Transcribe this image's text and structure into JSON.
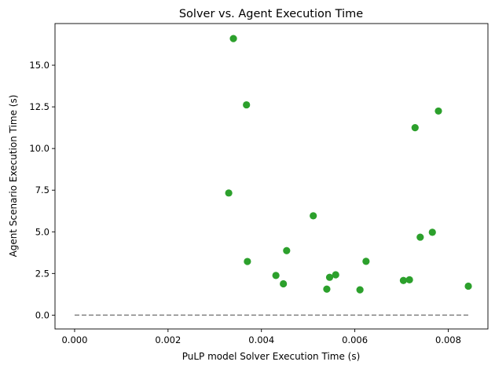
{
  "chart_data": {
    "type": "scatter",
    "title": "Solver vs. Agent Execution Time",
    "xlabel": "PuLP model Solver Execution Time (s)",
    "ylabel": "Agent Scenario Execution Time (s)",
    "xlim": [
      -0.00042,
      0.00885
    ],
    "ylim": [
      -0.83,
      17.5
    ],
    "grid": false,
    "x_ticks": [
      {
        "value": 0.0,
        "label": "0.000"
      },
      {
        "value": 0.002,
        "label": "0.002"
      },
      {
        "value": 0.004,
        "label": "0.004"
      },
      {
        "value": 0.006,
        "label": "0.006"
      },
      {
        "value": 0.008,
        "label": "0.008"
      }
    ],
    "y_ticks": [
      {
        "value": 0.0,
        "label": "0.0"
      },
      {
        "value": 2.5,
        "label": "2.5"
      },
      {
        "value": 5.0,
        "label": "5.0"
      },
      {
        "value": 7.5,
        "label": "7.5"
      },
      {
        "value": 10.0,
        "label": "10.0"
      },
      {
        "value": 12.5,
        "label": "12.5"
      },
      {
        "value": 15.0,
        "label": "15.0"
      }
    ],
    "series": [
      {
        "color": "#2ca02c",
        "marker": "circle",
        "points": [
          {
            "x": 0.0034,
            "y": 16.6
          },
          {
            "x": 0.00368,
            "y": 12.62
          },
          {
            "x": 0.0033,
            "y": 7.33
          },
          {
            "x": 0.0037,
            "y": 3.22
          },
          {
            "x": 0.00431,
            "y": 2.38
          },
          {
            "x": 0.00447,
            "y": 1.88
          },
          {
            "x": 0.00454,
            "y": 3.87
          },
          {
            "x": 0.00511,
            "y": 5.96
          },
          {
            "x": 0.0054,
            "y": 1.56
          },
          {
            "x": 0.00546,
            "y": 2.27
          },
          {
            "x": 0.00559,
            "y": 2.42
          },
          {
            "x": 0.00611,
            "y": 1.52
          },
          {
            "x": 0.00624,
            "y": 3.23
          },
          {
            "x": 0.00704,
            "y": 2.08
          },
          {
            "x": 0.00717,
            "y": 2.12
          },
          {
            "x": 0.00729,
            "y": 11.25
          },
          {
            "x": 0.0074,
            "y": 4.68
          },
          {
            "x": 0.00766,
            "y": 4.97
          },
          {
            "x": 0.00779,
            "y": 12.25
          },
          {
            "x": 0.00843,
            "y": 1.74
          }
        ]
      }
    ],
    "reference_line": {
      "x": [
        0.0,
        0.00843
      ],
      "y": [
        0.0,
        0.0
      ],
      "style": "dashed",
      "color": "#808080"
    }
  }
}
